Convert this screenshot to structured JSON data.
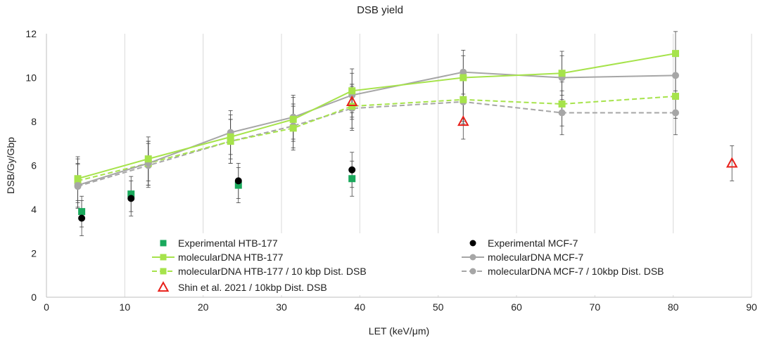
{
  "chart_data": {
    "type": "line",
    "title": "DSB yield",
    "xlabel": "LET (keV/μm)",
    "ylabel": "DSB/Gy/Gbp",
    "xlim": [
      0,
      90
    ],
    "ylim": [
      0,
      12
    ],
    "x_ticks": [
      "0",
      "10",
      "20",
      "30",
      "40",
      "50",
      "60",
      "70",
      "80",
      "90"
    ],
    "y_ticks": [
      "0",
      "2",
      "4",
      "6",
      "8",
      "10",
      "12"
    ],
    "grid": "vertical",
    "legend_position": "bottom-inside",
    "series": [
      {
        "name": "Experimental HTB-177",
        "style": "markers",
        "marker": "square",
        "color": "#1aa95c",
        "points": [
          {
            "x": 4.5,
            "y": 3.9,
            "err": 0.7
          },
          {
            "x": 10.8,
            "y": 4.7,
            "err": 0.8
          },
          {
            "x": 24.5,
            "y": 5.1,
            "err": 0.8
          },
          {
            "x": 39,
            "y": 5.4,
            "err": 0.8
          }
        ]
      },
      {
        "name": "Experimental MCF-7",
        "style": "markers",
        "marker": "circle",
        "color": "#000000",
        "points": [
          {
            "x": 4.5,
            "y": 3.6,
            "err": 0.8
          },
          {
            "x": 10.8,
            "y": 4.5,
            "err": 0.8
          },
          {
            "x": 24.5,
            "y": 5.3,
            "err": 0.8
          },
          {
            "x": 39,
            "y": 5.8,
            "err": 0.8
          }
        ]
      },
      {
        "name": "molecularDNA HTB-177",
        "style": "solid",
        "marker": "square",
        "color": "#a6e34b",
        "points": [
          {
            "x": 4,
            "y": 5.4,
            "err": 1.0
          },
          {
            "x": 13,
            "y": 6.3,
            "err": 1.0
          },
          {
            "x": 23.5,
            "y": 7.3,
            "err": 1.0
          },
          {
            "x": 31.5,
            "y": 8.1,
            "err": 1.0
          },
          {
            "x": 39,
            "y": 9.4,
            "err": 1.0
          },
          {
            "x": 53.2,
            "y": 10.0,
            "err": 1.0
          },
          {
            "x": 65.8,
            "y": 10.2,
            "err": 1.0
          },
          {
            "x": 80.3,
            "y": 11.1,
            "err": 1.0
          }
        ]
      },
      {
        "name": "molecularDNA MCF-7",
        "style": "solid",
        "marker": "circle",
        "color": "#a6a6a6",
        "points": [
          {
            "x": 4,
            "y": 5.1,
            "err": 1.0
          },
          {
            "x": 13,
            "y": 6.1,
            "err": 1.0
          },
          {
            "x": 23.5,
            "y": 7.5,
            "err": 1.0
          },
          {
            "x": 31.5,
            "y": 8.2,
            "err": 1.0
          },
          {
            "x": 39,
            "y": 9.2,
            "err": 1.0
          },
          {
            "x": 53.2,
            "y": 10.25,
            "err": 1.0
          },
          {
            "x": 65.8,
            "y": 10.0,
            "err": 1.0
          },
          {
            "x": 80.3,
            "y": 10.1,
            "err": 1.0
          }
        ]
      },
      {
        "name": "molecularDNA HTB-177 / 10 kbp Dist. DSB",
        "style": "dashed",
        "marker": "square",
        "color": "#a6e34b",
        "points": [
          {
            "x": 4,
            "y": 5.3,
            "err": 1.0
          },
          {
            "x": 13,
            "y": 6.1,
            "err": 1.0
          },
          {
            "x": 23.5,
            "y": 7.1,
            "err": 1.0
          },
          {
            "x": 31.5,
            "y": 7.7,
            "err": 1.0
          },
          {
            "x": 39,
            "y": 8.7,
            "err": 1.0
          },
          {
            "x": 53.2,
            "y": 9.0,
            "err": 1.0
          },
          {
            "x": 65.8,
            "y": 8.8,
            "err": 1.0
          },
          {
            "x": 80.3,
            "y": 9.15,
            "err": 1.0
          }
        ]
      },
      {
        "name": "molecularDNA MCF-7 / 10kbp Dist. DSB",
        "style": "dashed",
        "marker": "circle",
        "color": "#a6a6a6",
        "points": [
          {
            "x": 4,
            "y": 5.05,
            "err": 1.0
          },
          {
            "x": 13,
            "y": 6.0,
            "err": 1.0
          },
          {
            "x": 23.5,
            "y": 7.1,
            "err": 1.0
          },
          {
            "x": 31.5,
            "y": 7.8,
            "err": 1.0
          },
          {
            "x": 39,
            "y": 8.6,
            "err": 1.0
          },
          {
            "x": 53.2,
            "y": 8.9,
            "err": 1.0
          },
          {
            "x": 65.8,
            "y": 8.4,
            "err": 1.0
          },
          {
            "x": 80.3,
            "y": 8.4,
            "err": 1.0
          }
        ]
      },
      {
        "name": "Shin et al. 2021 / 10kbp Dist. DSB",
        "style": "markers",
        "marker": "triangle-open",
        "color": "#e8201a",
        "points": [
          {
            "x": 39,
            "y": 8.9,
            "err": 0.8
          },
          {
            "x": 53.2,
            "y": 8.0,
            "err": 0.8
          },
          {
            "x": 87.5,
            "y": 6.1,
            "err": 0.8
          }
        ]
      }
    ],
    "legend": [
      {
        "series": 0,
        "col": 0,
        "row": 0
      },
      {
        "series": 1,
        "col": 1,
        "row": 0
      },
      {
        "series": 2,
        "col": 0,
        "row": 1
      },
      {
        "series": 3,
        "col": 1,
        "row": 1
      },
      {
        "series": 4,
        "col": 0,
        "row": 2
      },
      {
        "series": 5,
        "col": 1,
        "row": 2
      },
      {
        "series": 6,
        "col": 0,
        "row": 3
      }
    ]
  }
}
